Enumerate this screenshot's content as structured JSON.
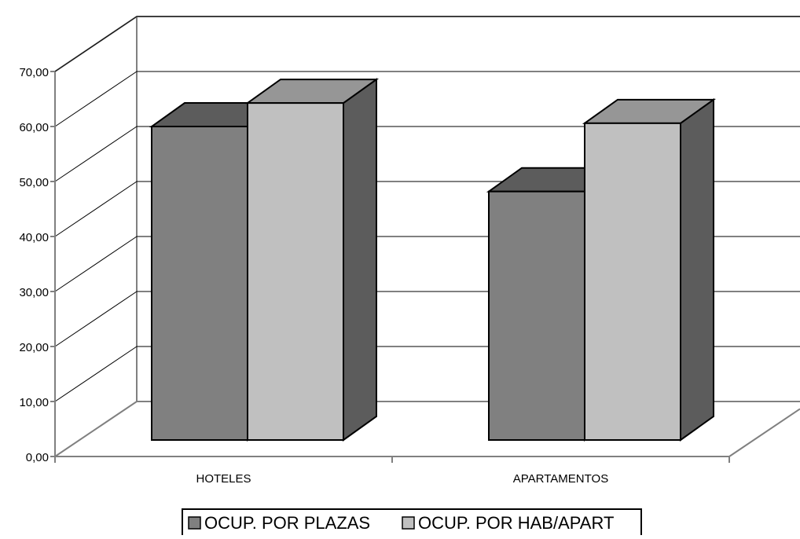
{
  "chart_data": {
    "type": "bar",
    "subtype": "3d-clustered-column",
    "categories": [
      "HOTELES",
      "APARTAMENTOS"
    ],
    "series": [
      {
        "name": "OCUP. POR PLAZAS",
        "values": [
          57.4,
          45.5
        ],
        "color": "#808080"
      },
      {
        "name": "OCUP. POR HAB/APART",
        "values": [
          61.7,
          58.0
        ],
        "color": "#c0c0c0"
      }
    ],
    "yticks": [
      "0,00",
      "10,00",
      "20,00",
      "30,00",
      "40,00",
      "50,00",
      "60,00",
      "70,00"
    ],
    "ylim": [
      0,
      70
    ],
    "grid": true,
    "legend_position": "bottom"
  }
}
